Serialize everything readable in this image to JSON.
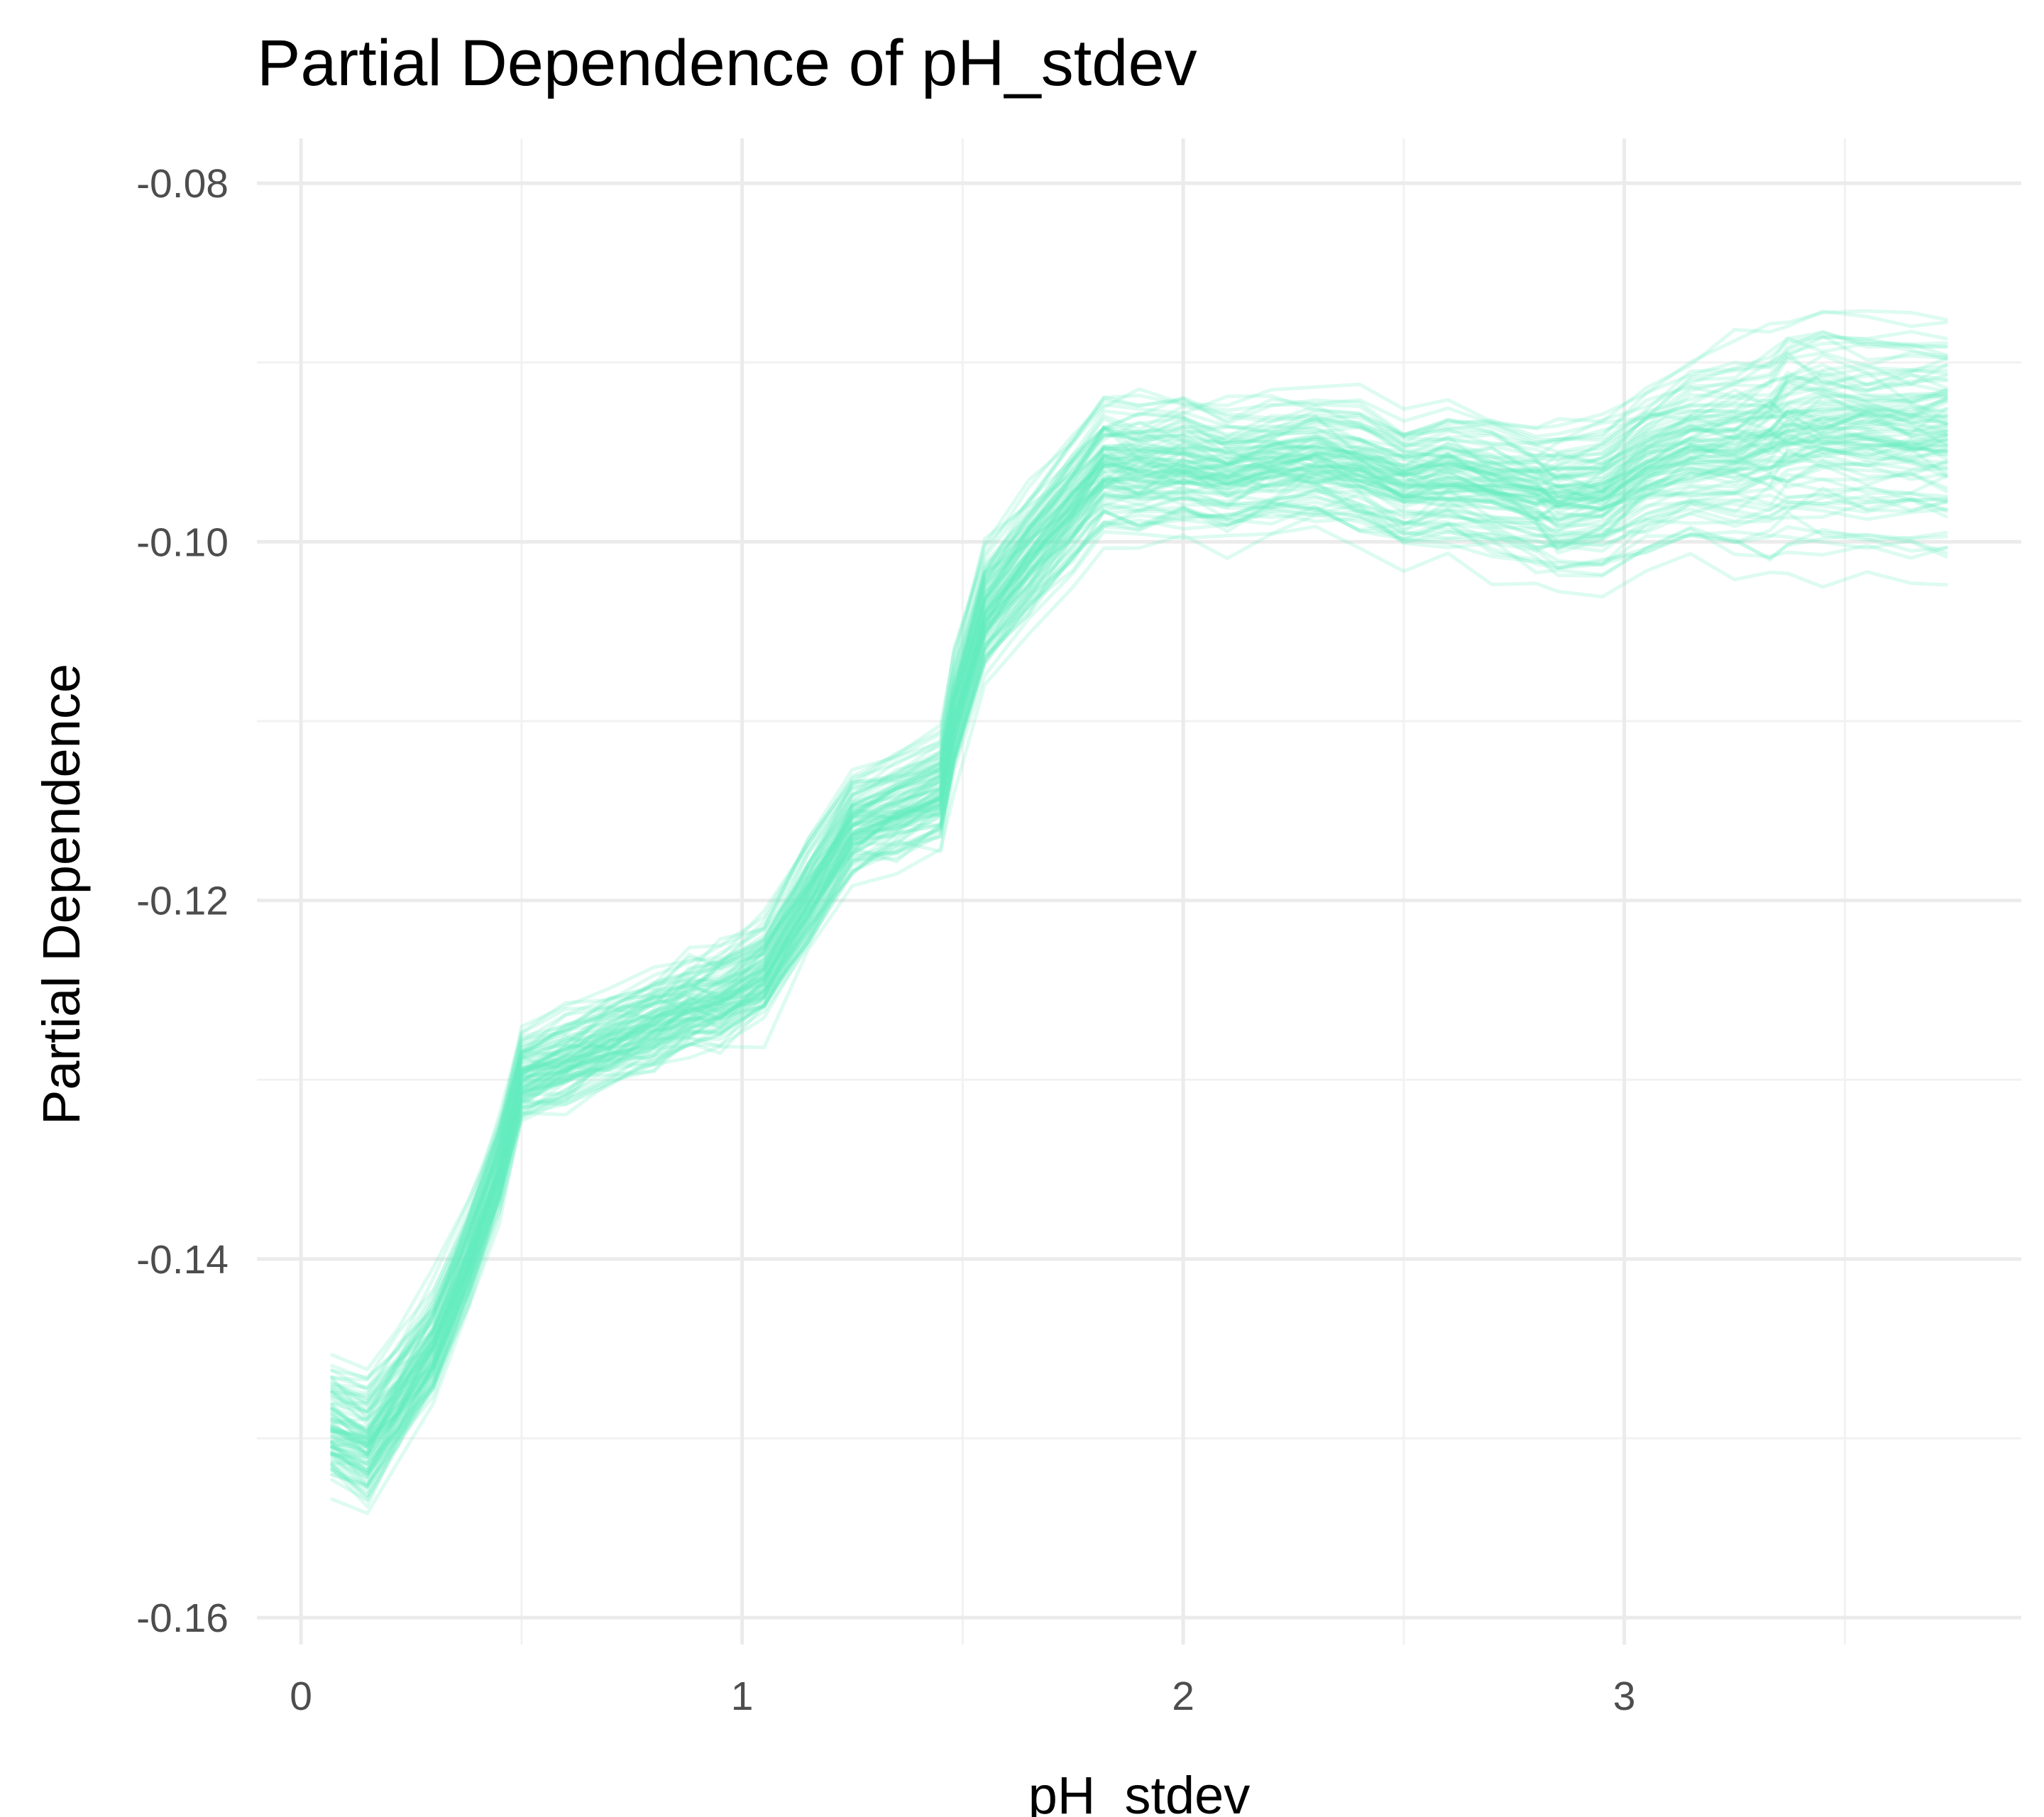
{
  "chart_data": {
    "type": "line",
    "title": "Partial Dependence of pH_stdev",
    "xlabel": "pH_stdev",
    "ylabel": "Partial Dependence",
    "xlim": [
      -0.1,
      3.9
    ],
    "ylim": [
      -0.1615,
      -0.0775
    ],
    "x_ticks": [
      {
        "value": 0,
        "label": "0"
      },
      {
        "value": 1,
        "label": "1"
      },
      {
        "value": 2,
        "label": "2"
      },
      {
        "value": 3,
        "label": "3"
      }
    ],
    "y_ticks": [
      {
        "value": -0.08,
        "label": "-0.08"
      },
      {
        "value": -0.1,
        "label": "-0.10"
      },
      {
        "value": -0.12,
        "label": "-0.12"
      },
      {
        "value": -0.14,
        "label": "-0.14"
      },
      {
        "value": -0.16,
        "label": "-0.16"
      }
    ],
    "grid": true,
    "legend": "none",
    "line_color": "#64eec0",
    "line_opacity": 0.22,
    "line_count": 100,
    "x": [
      0.07,
      0.15,
      0.22,
      0.3,
      0.38,
      0.45,
      0.5,
      0.6,
      0.7,
      0.8,
      0.88,
      0.95,
      1.05,
      1.15,
      1.25,
      1.35,
      1.45,
      1.48,
      1.55,
      1.65,
      1.75,
      1.82,
      1.9,
      2.0,
      2.1,
      2.2,
      2.3,
      2.4,
      2.5,
      2.6,
      2.7,
      2.8,
      2.85,
      2.95,
      3.05,
      3.15,
      3.25,
      3.33,
      3.37,
      3.45,
      3.55,
      3.65,
      3.73
    ],
    "center": [
      -0.1495,
      -0.1505,
      -0.148,
      -0.145,
      -0.14,
      -0.135,
      -0.13,
      -0.129,
      -0.128,
      -0.127,
      -0.126,
      -0.1255,
      -0.124,
      -0.12,
      -0.116,
      -0.115,
      -0.114,
      -0.11,
      -0.104,
      -0.101,
      -0.098,
      -0.096,
      -0.096,
      -0.0958,
      -0.0962,
      -0.0958,
      -0.0955,
      -0.096,
      -0.0968,
      -0.0965,
      -0.097,
      -0.0975,
      -0.0978,
      -0.0975,
      -0.096,
      -0.095,
      -0.095,
      -0.0945,
      -0.094,
      -0.0938,
      -0.094,
      -0.094,
      -0.094
    ],
    "spread": [
      0.0035,
      0.0035,
      0.0033,
      0.003,
      0.0028,
      0.0026,
      0.0025,
      0.0025,
      0.0025,
      0.0025,
      0.0025,
      0.0026,
      0.0027,
      0.0028,
      0.0028,
      0.0028,
      0.0028,
      0.003,
      0.0033,
      0.0035,
      0.0035,
      0.0035,
      0.0034,
      0.0033,
      0.0032,
      0.0032,
      0.0032,
      0.0032,
      0.0032,
      0.0032,
      0.0033,
      0.0034,
      0.0035,
      0.0036,
      0.0038,
      0.0042,
      0.0045,
      0.0048,
      0.005,
      0.005,
      0.005,
      0.005,
      0.005
    ]
  }
}
